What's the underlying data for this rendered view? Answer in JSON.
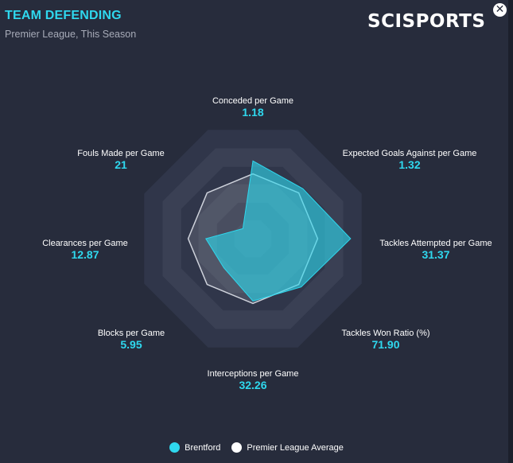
{
  "header": {
    "title": "TEAM DEFENDING",
    "subtitle": "Premier League, This Season",
    "brand": "SCISPORTS",
    "close_icon": "close-icon"
  },
  "colors": {
    "accent": "#2fd8ee",
    "team_fill": "#2fd8ee",
    "average_fill": "#ffffff",
    "ring_dark": "#30364a",
    "ring_light": "#3b4256"
  },
  "legend": {
    "items": [
      {
        "label": "Brentford",
        "color": "#2fd8ee"
      },
      {
        "label": "Premier League Average",
        "color": "#ffffff"
      }
    ]
  },
  "chart_data": {
    "type": "radar",
    "title": "TEAM DEFENDING",
    "subtitle": "Premier League, This Season",
    "axes": [
      {
        "label": "Conceded per Game",
        "value": "1.18"
      },
      {
        "label": "Expected Goals Against per Game",
        "value": "1.32"
      },
      {
        "label": "Tackles Attempted per Game",
        "value": "31.37"
      },
      {
        "label": "Tackles Won Ratio (%)",
        "value": "71.90"
      },
      {
        "label": "Interceptions per Game",
        "value": "32.26"
      },
      {
        "label": "Blocks per Game",
        "value": "5.95"
      },
      {
        "label": "Clearances per Game",
        "value": "12.87"
      },
      {
        "label": "Fouls Made per Game",
        "value": "21"
      }
    ],
    "scale": [
      0,
      1
    ],
    "series": [
      {
        "name": "Brentford",
        "values": [
          0.66,
          0.6,
          0.83,
          0.58,
          0.53,
          0.35,
          0.4,
          0.12
        ]
      },
      {
        "name": "Premier League Average",
        "values": [
          0.55,
          0.55,
          0.55,
          0.55,
          0.55,
          0.55,
          0.55,
          0.55
        ]
      }
    ],
    "legend_position": "bottom"
  }
}
